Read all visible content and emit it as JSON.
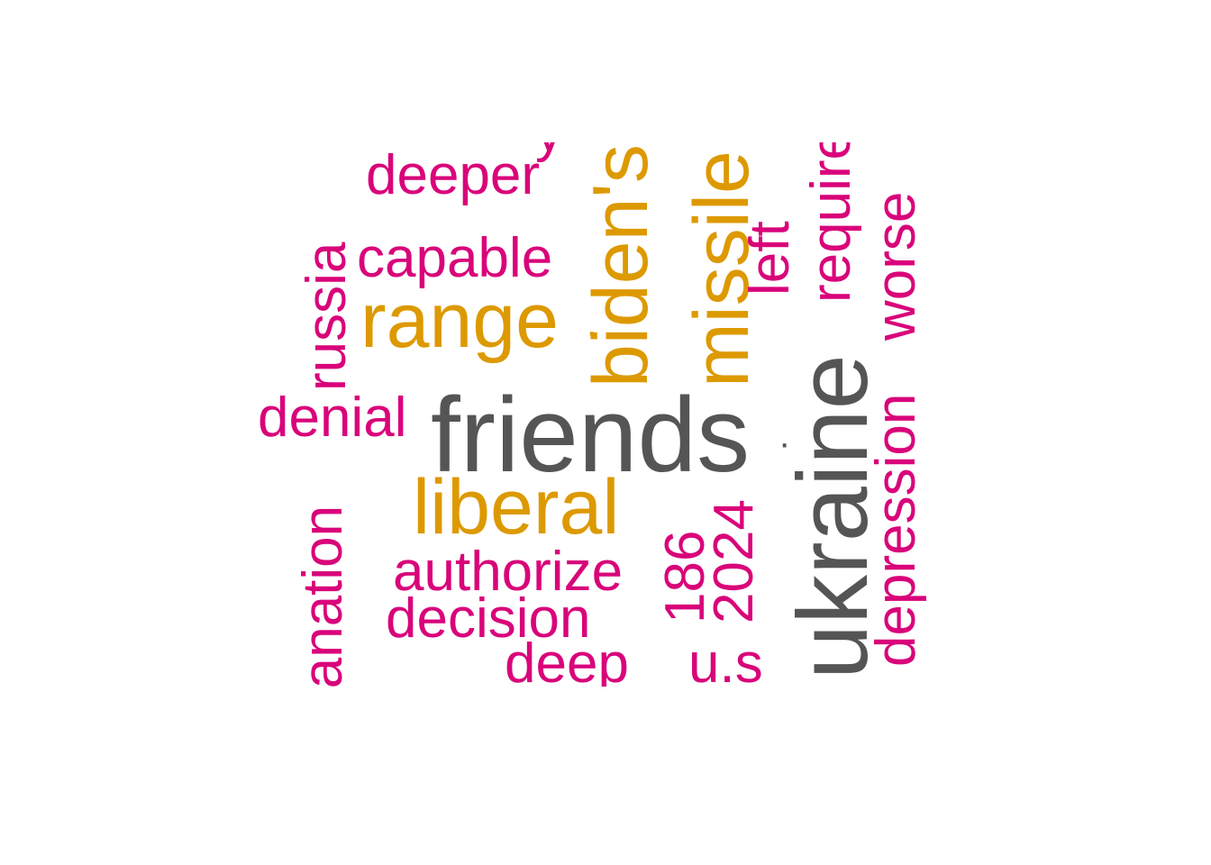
{
  "colors": {
    "gray": "#555555",
    "gold": "#DD9900",
    "pink": "#D9047A"
  },
  "words": {
    "friends": {
      "text": "friends",
      "color": "gray"
    },
    "ukraine": {
      "text": "ukraine",
      "color": "gray"
    },
    "range": {
      "text": "range",
      "color": "gold"
    },
    "liberal": {
      "text": "liberal",
      "color": "gold"
    },
    "biden": {
      "text": "biden's",
      "color": "gold"
    },
    "missile": {
      "text": "missile",
      "color": "gold"
    },
    "deeper": {
      "text": "deeper",
      "color": "pink"
    },
    "capable": {
      "text": "capable",
      "color": "pink"
    },
    "russia": {
      "text": "russia",
      "color": "pink"
    },
    "denial": {
      "text": "denial",
      "color": "pink"
    },
    "explanation": {
      "text": "explanation",
      "color": "pink"
    },
    "authorize": {
      "text": "authorize",
      "color": "pink"
    },
    "decision": {
      "text": "decision",
      "color": "pink"
    },
    "deep": {
      "text": "deep",
      "color": "pink"
    },
    "n186": {
      "text": "186",
      "color": "pink"
    },
    "n2024": {
      "text": "2024",
      "color": "pink"
    },
    "us": {
      "text": "u.s",
      "color": "pink"
    },
    "left": {
      "text": "left",
      "color": "pink"
    },
    "require": {
      "text": "require",
      "color": "pink"
    },
    "worse": {
      "text": "worse",
      "color": "pink"
    },
    "depression": {
      "text": "depression",
      "color": "pink"
    },
    "top_partial": {
      "text": "y",
      "color": "pink"
    },
    "dot1": {
      "text": "·",
      "color": "gold"
    },
    "dot2": {
      "text": "·",
      "color": "gray"
    }
  }
}
